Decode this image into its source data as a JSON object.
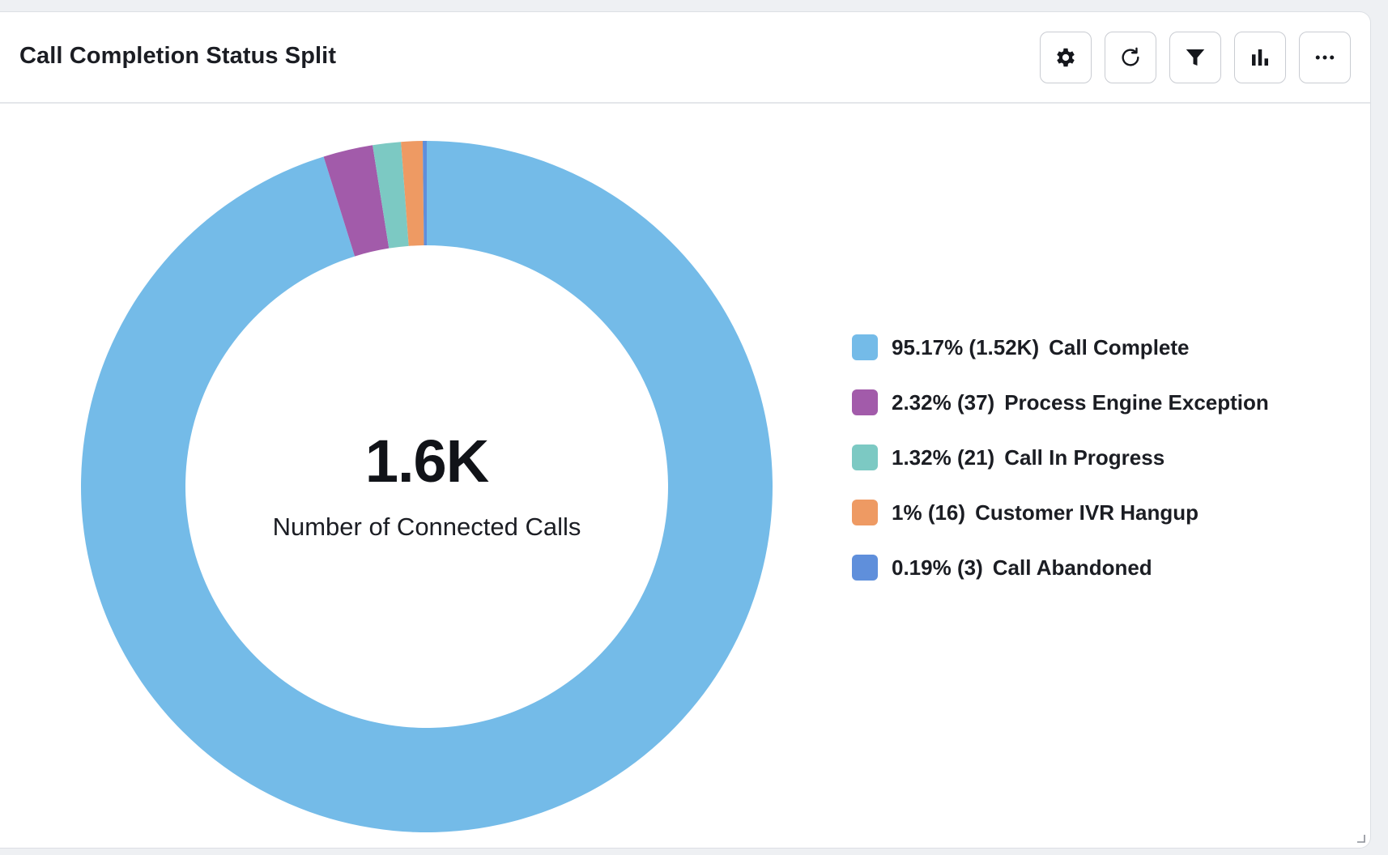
{
  "widget": {
    "title": "Call Completion Status Split",
    "toolbar": [
      {
        "name": "settings-button",
        "icon": "gear-icon"
      },
      {
        "name": "refresh-button",
        "icon": "refresh-icon"
      },
      {
        "name": "filter-button",
        "icon": "filter-icon"
      },
      {
        "name": "chart-type-button",
        "icon": "bar-chart-icon"
      },
      {
        "name": "more-options-button",
        "icon": "more-horizontal-icon"
      }
    ]
  },
  "chart_data": {
    "type": "pie",
    "variant": "donut",
    "center_value": "1.6K",
    "center_label": "Number of Connected Calls",
    "slices": [
      {
        "label": "Call Complete",
        "value": 1520,
        "percent": 95.17,
        "percent_text": "95.17%",
        "count_text": "(1.52K)",
        "color": "#74BBE8"
      },
      {
        "label": "Process Engine Exception",
        "value": 37,
        "percent": 2.32,
        "percent_text": "2.32%",
        "count_text": "(37)",
        "color": "#A25BAA"
      },
      {
        "label": "Call In Progress",
        "value": 21,
        "percent": 1.32,
        "percent_text": "1.32%",
        "count_text": "(21)",
        "color": "#7CC9C3"
      },
      {
        "label": "Customer IVR Hangup",
        "value": 16,
        "percent": 1.0,
        "percent_text": "1%",
        "count_text": "(16)",
        "color": "#EE9A63"
      },
      {
        "label": "Call Abandoned",
        "value": 3,
        "percent": 0.19,
        "percent_text": "0.19%",
        "count_text": "(3)",
        "color": "#5F8FDB"
      }
    ],
    "legend_position": "right"
  }
}
